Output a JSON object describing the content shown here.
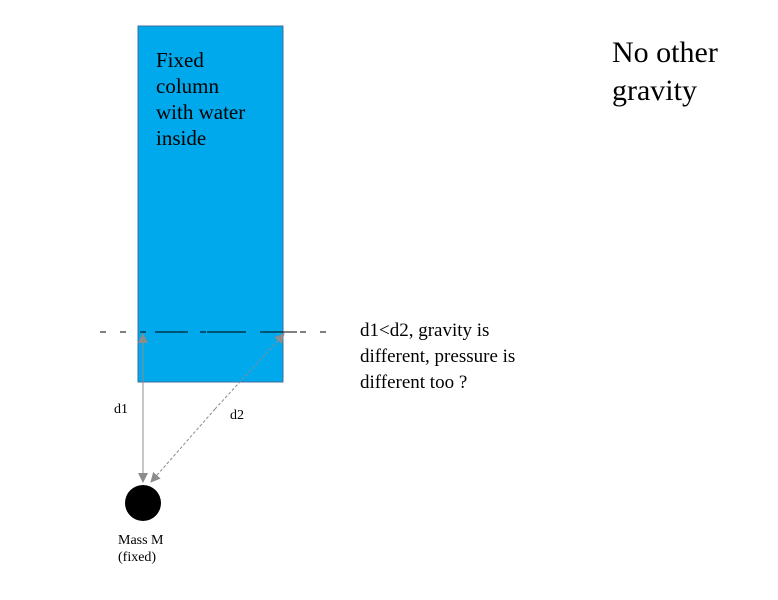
{
  "colors": {
    "water": "#00a8ec",
    "column_border": "#3f6e9a",
    "arrow": "#8c8c8c",
    "mass": "#000000",
    "text": "#000000"
  },
  "column": {
    "label": "Fixed\ncolumn\nwith water\ninside"
  },
  "notes": {
    "gravity": "No other\ngravity",
    "question": "d1<d2, gravity is\ndifferent, pressure is\ndifferent too ?"
  },
  "distances": {
    "d1_label": "d1",
    "d2_label": "d2"
  },
  "mass": {
    "label": "Mass M\n(fixed)"
  }
}
